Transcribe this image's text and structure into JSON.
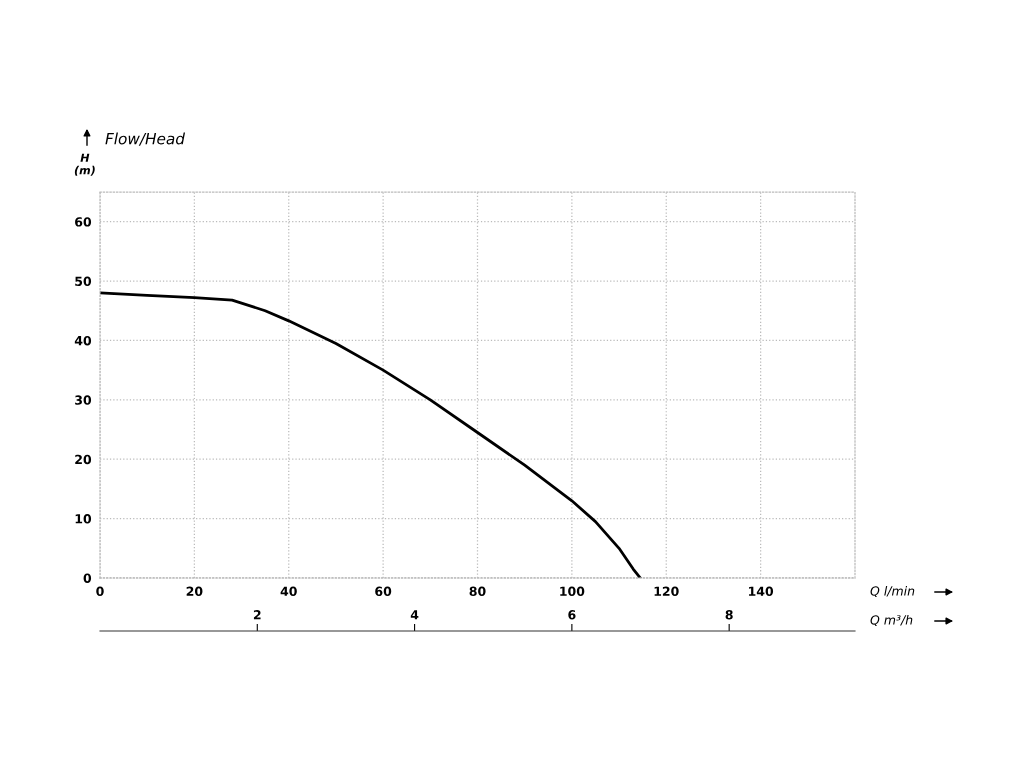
{
  "chart_data": {
    "type": "line",
    "title": "Flow/Head",
    "ylabel": "H\n(m)",
    "xlabel": "Q l/min",
    "x2label": "Q m³/h",
    "xlim": [
      0,
      160
    ],
    "xticks": [
      0,
      20,
      40,
      60,
      80,
      100,
      120,
      140
    ],
    "ylim": [
      0,
      65
    ],
    "yticks": [
      0,
      10,
      20,
      30,
      40,
      50,
      60
    ],
    "x2lim": [
      0,
      9.6
    ],
    "x2ticks": [
      2,
      4,
      6,
      8
    ],
    "grid": true,
    "line_style": "solid",
    "marker": "none",
    "series": [
      {
        "color": "#000000",
        "x": [
          0,
          10,
          20,
          28,
          35,
          40,
          50,
          60,
          70,
          80,
          90,
          100,
          105,
          110,
          113,
          114.5
        ],
        "values": [
          48,
          47.6,
          47.2,
          46.8,
          45,
          43.3,
          39.5,
          35,
          30,
          24.5,
          19,
          13,
          9.5,
          5,
          1.5,
          0
        ]
      }
    ]
  }
}
